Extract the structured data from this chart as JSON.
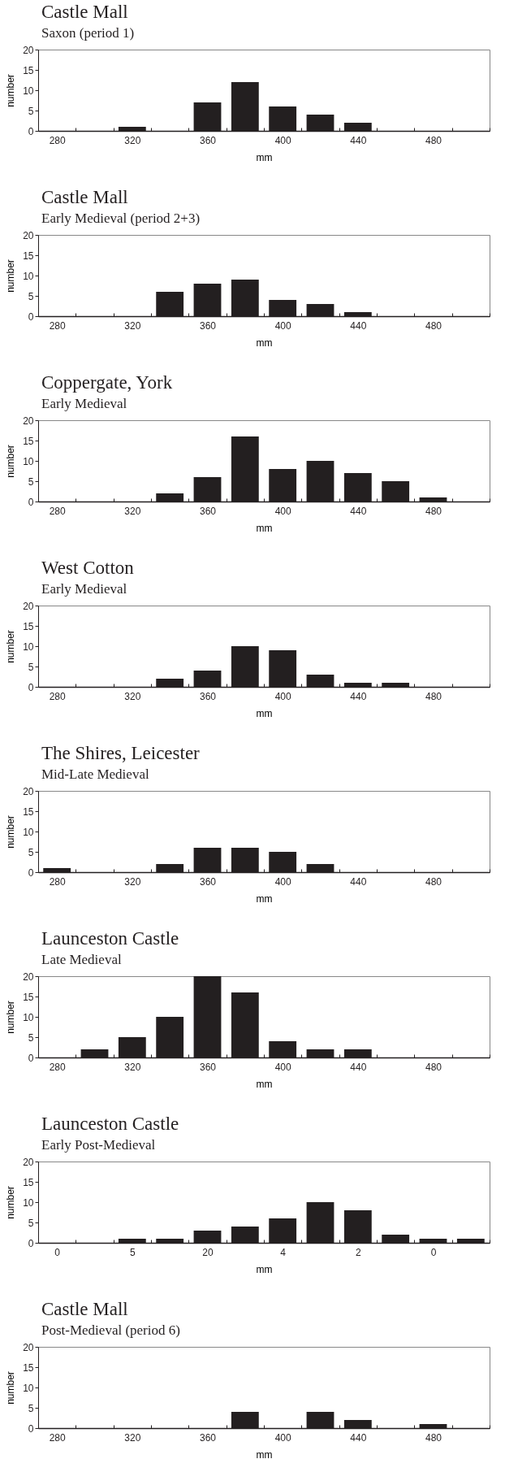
{
  "chart_data": [
    {
      "type": "bar",
      "title": "Castle Mall",
      "subtitle": "Saxon (period 1)",
      "xlabel": "mm",
      "ylabel": "number",
      "categories": [
        "280",
        null,
        "320",
        null,
        "360",
        null,
        "400",
        null,
        "440",
        null,
        "480",
        null
      ],
      "values": [
        0,
        0,
        1,
        0,
        7,
        12,
        6,
        4,
        2,
        0,
        0,
        0
      ],
      "color": "#231f20",
      "ylim": [
        0,
        20
      ],
      "yticks": [
        0,
        5,
        10,
        15,
        20
      ]
    },
    {
      "type": "bar",
      "title": "Castle Mall",
      "subtitle": "Early Medieval (period 2+3)",
      "xlabel": "mm",
      "ylabel": "number",
      "categories": [
        "280",
        null,
        "320",
        null,
        "360",
        null,
        "400",
        null,
        "440",
        null,
        "480",
        null
      ],
      "values": [
        0,
        0,
        0,
        6,
        8,
        9,
        4,
        3,
        1,
        0,
        0,
        0
      ],
      "color": "#231f20",
      "ylim": [
        0,
        20
      ],
      "yticks": [
        0,
        5,
        10,
        15,
        20
      ]
    },
    {
      "type": "bar",
      "title": "Coppergate, York",
      "subtitle": "Early Medieval",
      "xlabel": "mm",
      "ylabel": "number",
      "categories": [
        "280",
        null,
        "320",
        null,
        "360",
        null,
        "400",
        null,
        "440",
        null,
        "480",
        null
      ],
      "values": [
        0,
        0,
        0,
        2,
        6,
        16,
        8,
        10,
        7,
        5,
        1,
        0
      ],
      "color": "#231f20",
      "ylim": [
        0,
        20
      ],
      "yticks": [
        0,
        5,
        10,
        15,
        20
      ]
    },
    {
      "type": "bar",
      "title": "West Cotton",
      "subtitle": "Early Medieval",
      "xlabel": "mm",
      "ylabel": "number",
      "categories": [
        "280",
        null,
        "320",
        null,
        "360",
        null,
        "400",
        null,
        "440",
        null,
        "480",
        null
      ],
      "values": [
        0,
        0,
        0,
        2,
        4,
        10,
        9,
        3,
        1,
        1,
        0,
        0
      ],
      "color": "#231f20",
      "ylim": [
        0,
        20
      ],
      "yticks": [
        0,
        5,
        10,
        15,
        20
      ]
    },
    {
      "type": "bar",
      "title": "The Shires, Leicester",
      "subtitle": "Mid-Late Medieval",
      "xlabel": "mm",
      "ylabel": "number",
      "categories": [
        "280",
        null,
        "320",
        null,
        "360",
        null,
        "400",
        null,
        "440",
        null,
        "480",
        null
      ],
      "values": [
        1,
        0,
        0,
        2,
        6,
        6,
        5,
        2,
        0,
        0,
        0,
        0
      ],
      "color": "#231f20",
      "ylim": [
        0,
        20
      ],
      "yticks": [
        0,
        5,
        10,
        15,
        20
      ]
    },
    {
      "type": "bar",
      "title": "Launceston Castle",
      "subtitle": "Late Medieval",
      "xlabel": "mm",
      "ylabel": "number",
      "categories": [
        "280",
        null,
        "320",
        null,
        "360",
        null,
        "400",
        null,
        "440",
        null,
        "480",
        null
      ],
      "values": [
        0,
        2,
        5,
        10,
        20,
        16,
        4,
        2,
        2,
        0,
        0,
        0
      ],
      "color": "#231f20",
      "ylim": [
        0,
        20
      ],
      "yticks": [
        0,
        5,
        10,
        15,
        20
      ]
    },
    {
      "type": "bar",
      "title": "Launceston Castle",
      "subtitle": "Early Post-Medieval",
      "xlabel": "mm",
      "ylabel": "number",
      "categories": [
        "0",
        null,
        "5",
        null,
        "20",
        null,
        "4",
        null,
        "2",
        null,
        "0",
        null
      ],
      "values": [
        0,
        0,
        1,
        1,
        3,
        4,
        6,
        10,
        8,
        2,
        1,
        1
      ],
      "color": "#231f20",
      "ylim": [
        0,
        20
      ],
      "yticks": [
        0,
        5,
        10,
        15,
        20
      ]
    },
    {
      "type": "bar",
      "title": "Castle Mall",
      "subtitle": "Post-Medieval (period 6)",
      "xlabel": "mm",
      "ylabel": "number",
      "categories": [
        "280",
        null,
        "320",
        null,
        "360",
        null,
        "400",
        null,
        "440",
        null,
        "480",
        null
      ],
      "values": [
        0,
        0,
        0,
        0,
        0,
        4,
        0,
        4,
        2,
        0,
        1,
        0
      ],
      "color": "#231f20",
      "ylim": [
        0,
        20
      ],
      "yticks": [
        0,
        5,
        10,
        15,
        20
      ]
    }
  ]
}
